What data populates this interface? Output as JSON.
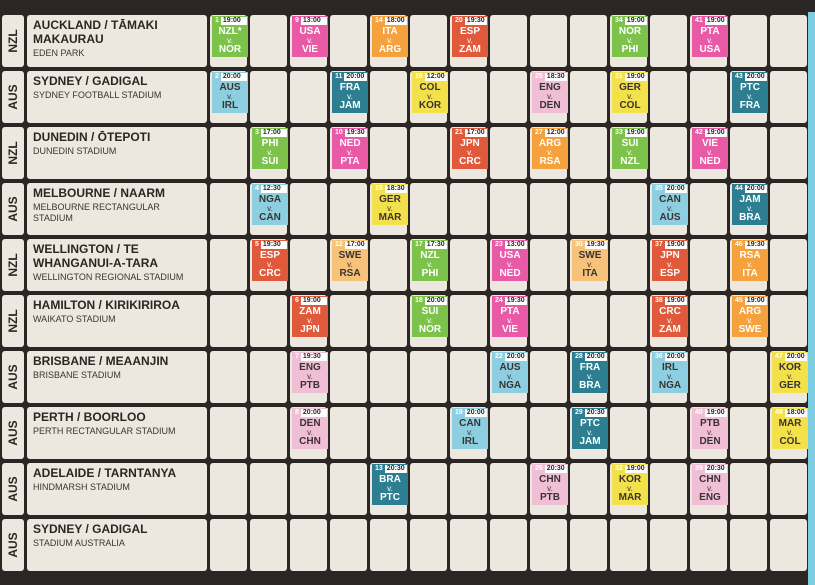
{
  "colors": {
    "green": "#7dc24b",
    "pink": "#e85aa6",
    "orange": "#f5a13d",
    "red": "#e0593a",
    "lightblue": "#8dcfe0",
    "teal": "#2c7e90",
    "yellow": "#f2e14a",
    "lightpink": "#f0bfd6",
    "lightorange": "#f7c27a"
  },
  "rows": [
    {
      "country": "NZL",
      "city": "AUCKLAND / TĀMAKI MAKAURAU",
      "stadium": "EDEN PARK",
      "matches": [
        {
          "col": 0,
          "no": "1",
          "time": "19:00",
          "a": "NZL*",
          "b": "NOR",
          "color": "green"
        },
        {
          "col": 2,
          "no": "9",
          "time": "13:00",
          "a": "USA",
          "b": "VIE",
          "color": "pink"
        },
        {
          "col": 4,
          "no": "14",
          "time": "18:00",
          "a": "ITA",
          "b": "ARG",
          "color": "orange"
        },
        {
          "col": 6,
          "no": "20",
          "time": "19:30",
          "a": "ESP",
          "b": "ZAM",
          "color": "red"
        },
        {
          "col": 10,
          "no": "34",
          "time": "19:00",
          "a": "NOR",
          "b": "PHI",
          "color": "green"
        },
        {
          "col": 12,
          "no": "41",
          "time": "19:00",
          "a": "PTA",
          "b": "USA",
          "color": "pink"
        }
      ]
    },
    {
      "country": "AUS",
      "city": "SYDNEY / GADIGAL",
      "stadium": "SYDNEY FOOTBALL STADIUM",
      "matches": [
        {
          "col": 0,
          "no": "2",
          "time": "20:00",
          "a": "AUS",
          "b": "IRL",
          "color": "lightblue"
        },
        {
          "col": 3,
          "no": "11",
          "time": "20:00",
          "a": "FRA",
          "b": "JAM",
          "color": "teal"
        },
        {
          "col": 5,
          "no": "16",
          "time": "12:00",
          "a": "COL",
          "b": "KOR",
          "color": "yellow"
        },
        {
          "col": 8,
          "no": "25",
          "time": "18:30",
          "a": "ENG",
          "b": "DEN",
          "color": "lightpink"
        },
        {
          "col": 10,
          "no": "31",
          "time": "19:00",
          "a": "GER",
          "b": "COL",
          "color": "yellow"
        },
        {
          "col": 13,
          "no": "43",
          "time": "20:00",
          "a": "PTC",
          "b": "FRA",
          "color": "teal"
        }
      ]
    },
    {
      "country": "NZL",
      "city": "DUNEDIN / ŌTEPOTI",
      "stadium": "DUNEDIN STADIUM",
      "matches": [
        {
          "col": 1,
          "no": "3",
          "time": "17:00",
          "a": "PHI",
          "b": "SUI",
          "color": "green"
        },
        {
          "col": 3,
          "no": "10",
          "time": "19:30",
          "a": "NED",
          "b": "PTA",
          "color": "pink"
        },
        {
          "col": 6,
          "no": "21",
          "time": "17:00",
          "a": "JPN",
          "b": "CRC",
          "color": "red"
        },
        {
          "col": 8,
          "no": "27",
          "time": "12:00",
          "a": "ARG",
          "b": "RSA",
          "color": "orange"
        },
        {
          "col": 10,
          "no": "33",
          "time": "19:00",
          "a": "SUI",
          "b": "NZL",
          "color": "green"
        },
        {
          "col": 12,
          "no": "42",
          "time": "19:00",
          "a": "VIE",
          "b": "NED",
          "color": "pink"
        }
      ]
    },
    {
      "country": "AUS",
      "city": "MELBOURNE / NAARM",
      "stadium": "MELBOURNE RECTANGULAR STADIUM",
      "matches": [
        {
          "col": 1,
          "no": "4",
          "time": "12:30",
          "a": "NGA",
          "b": "CAN",
          "color": "lightblue"
        },
        {
          "col": 4,
          "no": "15",
          "time": "18:30",
          "a": "GER",
          "b": "MAR",
          "color": "yellow"
        },
        {
          "col": 11,
          "no": "35",
          "time": "20:00",
          "a": "CAN",
          "b": "AUS",
          "color": "lightblue"
        },
        {
          "col": 13,
          "no": "44",
          "time": "20:00",
          "a": "JAM",
          "b": "BRA",
          "color": "teal"
        }
      ]
    },
    {
      "country": "NZL",
      "city": "WELLINGTON / TE WHANGANUI-A-TARA",
      "stadium": "WELLINGTON REGIONAL STADIUM",
      "matches": [
        {
          "col": 1,
          "no": "5",
          "time": "19:30",
          "a": "ESP",
          "b": "CRC",
          "color": "red"
        },
        {
          "col": 3,
          "no": "12",
          "time": "17:00",
          "a": "SWE",
          "b": "RSA",
          "color": "lightorange"
        },
        {
          "col": 5,
          "no": "17",
          "time": "17:30",
          "a": "NZL",
          "b": "PHI",
          "color": "green"
        },
        {
          "col": 7,
          "no": "23",
          "time": "13:00",
          "a": "USA",
          "b": "NED",
          "color": "pink"
        },
        {
          "col": 9,
          "no": "30",
          "time": "19:30",
          "a": "SWE",
          "b": "ITA",
          "color": "lightorange"
        },
        {
          "col": 11,
          "no": "37",
          "time": "19:00",
          "a": "JPN",
          "b": "ESP",
          "color": "red"
        },
        {
          "col": 13,
          "no": "46",
          "time": "19:30",
          "a": "RSA",
          "b": "ITA",
          "color": "orange"
        }
      ]
    },
    {
      "country": "NZL",
      "city": "HAMILTON / KIRIKIRIROA",
      "stadium": "WAIKATO STADIUM",
      "matches": [
        {
          "col": 2,
          "no": "6",
          "time": "19:00",
          "a": "ZAM",
          "b": "JPN",
          "color": "red"
        },
        {
          "col": 5,
          "no": "18",
          "time": "20:00",
          "a": "SUI",
          "b": "NOR",
          "color": "green"
        },
        {
          "col": 7,
          "no": "24",
          "time": "19:30",
          "a": "PTA",
          "b": "VIE",
          "color": "pink"
        },
        {
          "col": 11,
          "no": "38",
          "time": "19:00",
          "a": "CRC",
          "b": "ZAM",
          "color": "red"
        },
        {
          "col": 13,
          "no": "45",
          "time": "19:00",
          "a": "ARG",
          "b": "SWE",
          "color": "orange"
        }
      ]
    },
    {
      "country": "AUS",
      "city": "BRISBANE / MEAANJIN",
      "stadium": "BRISBANE STADIUM",
      "matches": [
        {
          "col": 2,
          "no": "7",
          "time": "19:30",
          "a": "ENG",
          "b": "PTB",
          "color": "lightpink"
        },
        {
          "col": 7,
          "no": "22",
          "time": "20:00",
          "a": "AUS",
          "b": "NGA",
          "color": "lightblue"
        },
        {
          "col": 9,
          "no": "28",
          "time": "20:00",
          "a": "FRA",
          "b": "BRA",
          "color": "teal"
        },
        {
          "col": 11,
          "no": "36",
          "time": "20:00",
          "a": "IRL",
          "b": "NGA",
          "color": "lightblue"
        },
        {
          "col": 14,
          "no": "47",
          "time": "20:00",
          "a": "KOR",
          "b": "GER",
          "color": "yellow"
        }
      ]
    },
    {
      "country": "AUS",
      "city": "PERTH / BOORLOO",
      "stadium": "PERTH RECTANGULAR STADIUM",
      "matches": [
        {
          "col": 2,
          "no": "8",
          "time": "20:00",
          "a": "DEN",
          "b": "CHN",
          "color": "lightpink"
        },
        {
          "col": 6,
          "no": "19",
          "time": "20:00",
          "a": "CAN",
          "b": "IRL",
          "color": "lightblue"
        },
        {
          "col": 9,
          "no": "29",
          "time": "20:30",
          "a": "PTC",
          "b": "JAM",
          "color": "teal"
        },
        {
          "col": 12,
          "no": "40",
          "time": "19:00",
          "a": "PTB",
          "b": "DEN",
          "color": "lightpink"
        },
        {
          "col": 14,
          "no": "48",
          "time": "18:00",
          "a": "MAR",
          "b": "COL",
          "color": "yellow"
        }
      ]
    },
    {
      "country": "AUS",
      "city": "ADELAIDE / TARNTANYA",
      "stadium": "HINDMARSH STADIUM",
      "matches": [
        {
          "col": 4,
          "no": "13",
          "time": "20:30",
          "a": "BRA",
          "b": "PTC",
          "color": "teal"
        },
        {
          "col": 8,
          "no": "26",
          "time": "20:30",
          "a": "CHN",
          "b": "PTB",
          "color": "lightpink"
        },
        {
          "col": 10,
          "no": "32",
          "time": "19:00",
          "a": "KOR",
          "b": "MAR",
          "color": "yellow"
        },
        {
          "col": 12,
          "no": "39",
          "time": "20:30",
          "a": "CHN",
          "b": "ENG",
          "color": "lightpink"
        }
      ]
    },
    {
      "country": "AUS",
      "city": "SYDNEY / GADIGAL",
      "stadium": "STADIUM AUSTRALIA",
      "matches": []
    }
  ]
}
